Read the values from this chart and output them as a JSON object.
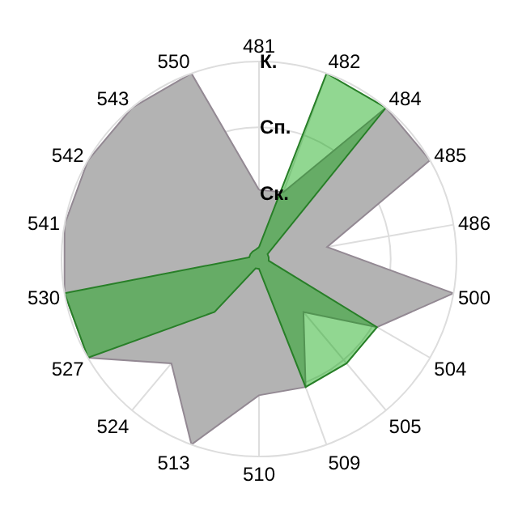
{
  "chart_data": {
    "type": "radar",
    "ylim": [
      0,
      1
    ],
    "categories": [
      "481",
      "482",
      "484",
      "485",
      "486",
      "500",
      "504",
      "505",
      "509",
      "510",
      "513",
      "524",
      "527",
      "530",
      "541",
      "542",
      "543",
      "550"
    ],
    "yticks": [
      {
        "value": 0.333,
        "label": "Ск."
      },
      {
        "value": 0.667,
        "label": "Сп."
      },
      {
        "value": 1,
        "label": "К."
      }
    ],
    "grid": true,
    "marker": "none",
    "series": [
      {
        "color": "#b3b3b3",
        "values": [
          0.35,
          0.36,
          1.0,
          1.0,
          0.35,
          1.0,
          0.69,
          0.35,
          0.69,
          0.69,
          1.0,
          0.69,
          1.0,
          1.0,
          1.0,
          1.0,
          1.0,
          1.0
        ]
      },
      {
        "color": "#00a300",
        "values": [
          0.06,
          1.0,
          1.0,
          0.05,
          0.05,
          0.05,
          0.69,
          0.69,
          0.69,
          0.05,
          0.05,
          0.35,
          1.0,
          1.0,
          0.05,
          0.05,
          0.05,
          0.05
        ]
      }
    ]
  }
}
